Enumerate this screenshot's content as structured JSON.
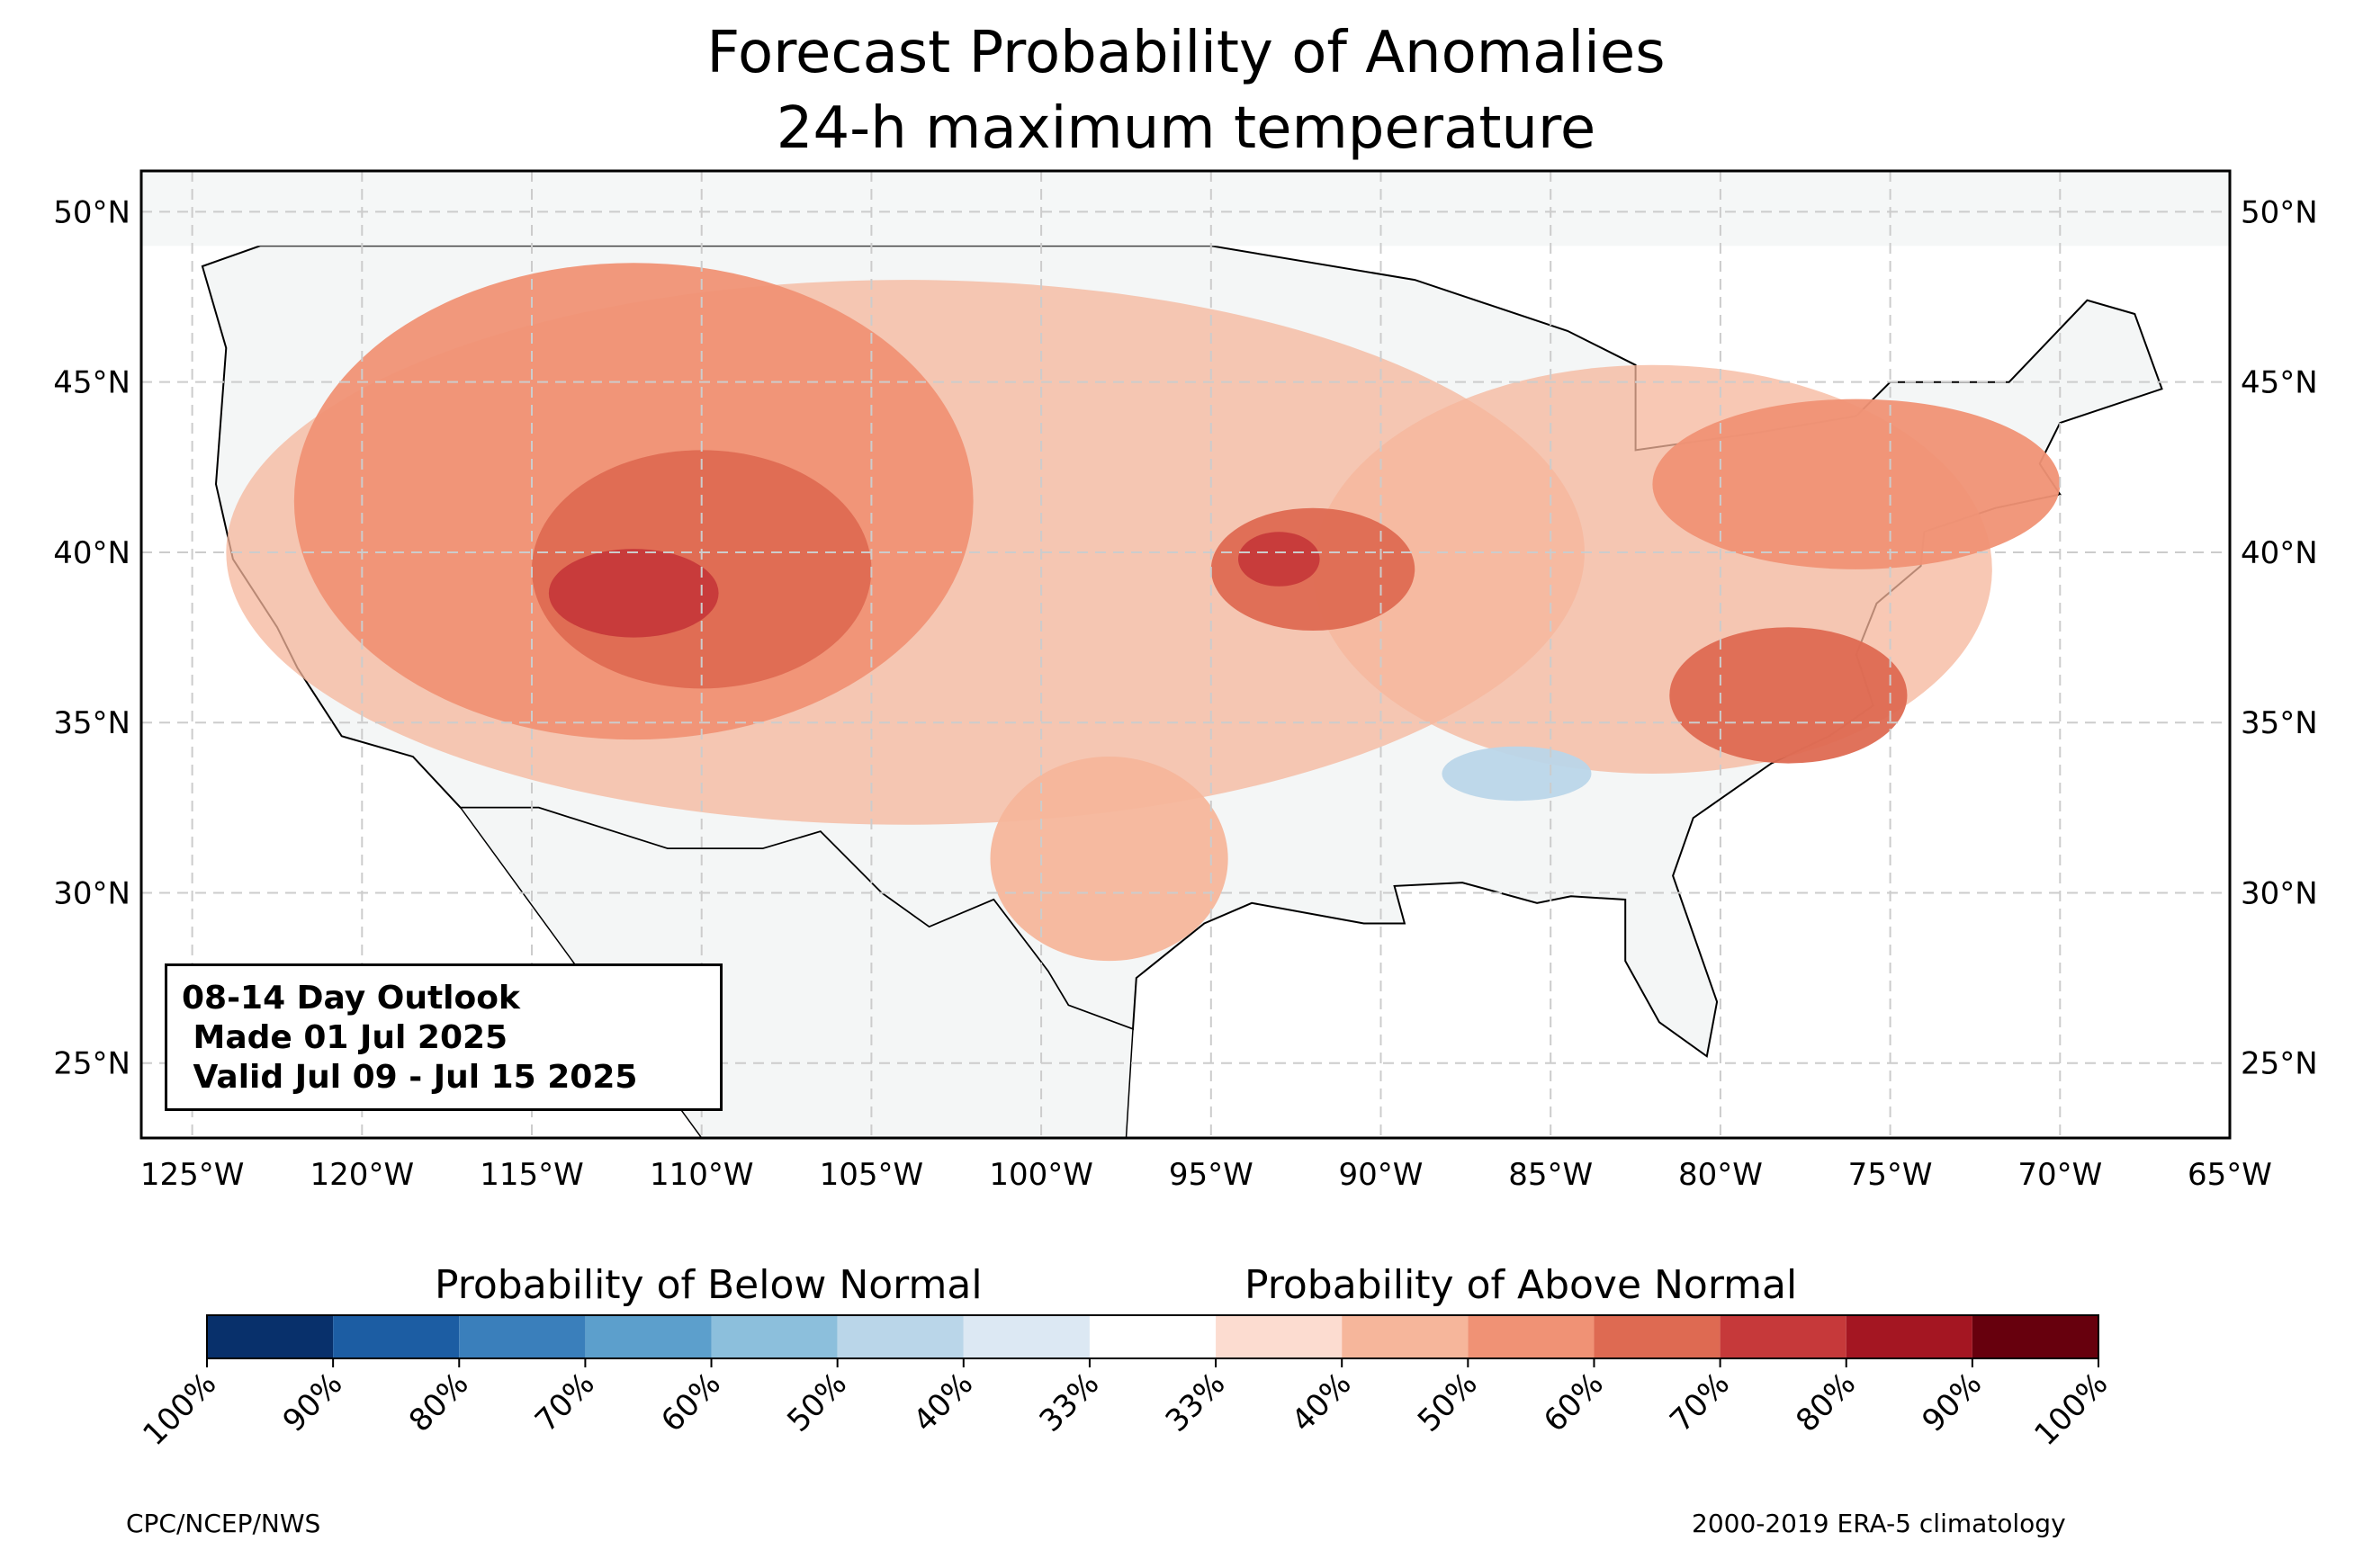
{
  "title": {
    "line1": "Forecast Probability of Anomalies",
    "line2": "24-h maximum temperature"
  },
  "map": {
    "lon_range": [
      -126.5,
      -65
    ],
    "lat_range": [
      22.8,
      51.2
    ],
    "lon_ticks": [
      "125°W",
      "120°W",
      "115°W",
      "110°W",
      "105°W",
      "100°W",
      "95°W",
      "90°W",
      "85°W",
      "80°W",
      "75°W",
      "70°W",
      "65°W"
    ],
    "lon_values": [
      -125,
      -120,
      -115,
      -110,
      -105,
      -100,
      -95,
      -90,
      -85,
      -80,
      -75,
      -70,
      -65
    ],
    "lat_ticks": [
      "25°N",
      "30°N",
      "35°N",
      "40°N",
      "45°N",
      "50°N"
    ],
    "lat_values": [
      25,
      30,
      35,
      40,
      45,
      50
    ],
    "gridlines": true,
    "land_color": "#f4f6f6",
    "anomaly_regions": [
      {
        "category": "above",
        "level": "50-60%",
        "lon": -112,
        "lat": 41.5,
        "rx": 10,
        "ry": 7
      },
      {
        "category": "above",
        "level": "60-70%",
        "lon": -110,
        "lat": 39.5,
        "rx": 5,
        "ry": 3.5
      },
      {
        "category": "above",
        "level": "70-80%",
        "lon": -112,
        "lat": 38.8,
        "rx": 2.5,
        "ry": 1.3
      },
      {
        "category": "above",
        "level": "60-70%",
        "lon": -92,
        "lat": 39.5,
        "rx": 3,
        "ry": 1.8
      },
      {
        "category": "above",
        "level": "70-80%",
        "lon": -93,
        "lat": 39.8,
        "rx": 1.2,
        "ry": 0.8
      },
      {
        "category": "above",
        "level": "60-70%",
        "lon": -78,
        "lat": 35.8,
        "rx": 3.5,
        "ry": 2
      },
      {
        "category": "above",
        "level": "50-60%",
        "lon": -76,
        "lat": 42,
        "rx": 6,
        "ry": 2.5
      },
      {
        "category": "above",
        "level": "40-50%",
        "lon": -98,
        "lat": 31,
        "rx": 3.5,
        "ry": 3
      }
    ],
    "below_regions": [
      {
        "category": "below",
        "level": "40-50%",
        "lon": -86,
        "lat": 33.5,
        "rx": 2.2,
        "ry": 0.8
      }
    ]
  },
  "outlook_box": {
    "line1": "08-14 Day Outlook",
    "line2": " Made 01 Jul 2025",
    "line3": " Valid Jul 09 - Jul 15 2025"
  },
  "colorbar": {
    "below_label": "Probability of Below Normal",
    "above_label": "Probability of Above Normal",
    "colors": [
      "#08306b",
      "#1c5da3",
      "#3a7fbb",
      "#5c9fcc",
      "#8cbfdc",
      "#bad6e9",
      "#dce8f3",
      "#ffffff",
      "#fcdcd0",
      "#f6b69b",
      "#f09275",
      "#de6a52",
      "#c6393a",
      "#a41622",
      "#67000d"
    ],
    "tick_labels": [
      "100%",
      "90%",
      "80%",
      "70%",
      "60%",
      "50%",
      "40%",
      "33%",
      "33%",
      "40%",
      "50%",
      "60%",
      "70%",
      "80%",
      "90%",
      "100%"
    ]
  },
  "footer": {
    "left": "CPC/NCEP/NWS",
    "right": "2000-2019 ERA-5 climatology"
  }
}
